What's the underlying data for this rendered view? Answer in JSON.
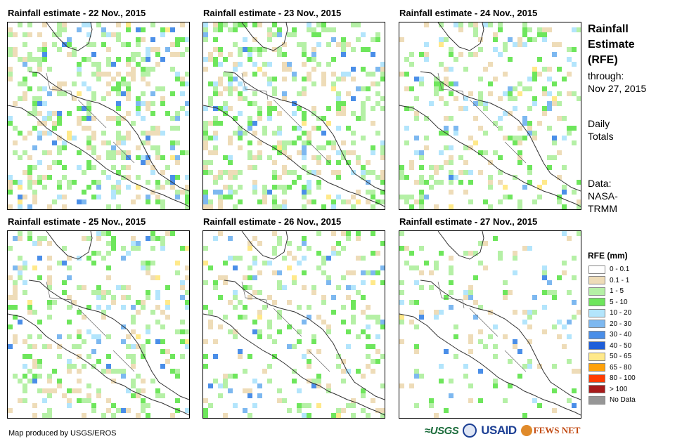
{
  "panels": [
    {
      "title": "Rainfall estimate - 22 Nov., 2015"
    },
    {
      "title": "Rainfall estimate - 23 Nov., 2015"
    },
    {
      "title": "Rainfall estimate - 24 Nov., 2015"
    },
    {
      "title": "Rainfall estimate - 25 Nov., 2015"
    },
    {
      "title": "Rainfall estimate - 26 Nov., 2015"
    },
    {
      "title": "Rainfall estimate - 27 Nov., 2015"
    }
  ],
  "side": {
    "head1": "Rainfall",
    "head2": "Estimate",
    "head3": "(RFE)",
    "through1": "through:",
    "through2": "Nov 27, 2015",
    "daily1": "Daily",
    "daily2": "Totals",
    "data1": "Data:",
    "data2": "NASA-",
    "data3": "TRMM"
  },
  "legend": {
    "title": "RFE (mm)",
    "items": [
      {
        "label": "0 - 0.1",
        "color": "#ffffff"
      },
      {
        "label": "0.1 - 1",
        "color": "#eedcb8"
      },
      {
        "label": "1 - 5",
        "color": "#b5f0a6"
      },
      {
        "label": "5 - 10",
        "color": "#6ee65c"
      },
      {
        "label": "10 - 20",
        "color": "#b3e5fc"
      },
      {
        "label": "20 - 30",
        "color": "#7db8f0"
      },
      {
        "label": "30 - 40",
        "color": "#4a8ee8"
      },
      {
        "label": "40 - 50",
        "color": "#1f5fd9"
      },
      {
        "label": "50 - 65",
        "color": "#ffe98a"
      },
      {
        "label": "65 - 80",
        "color": "#ffa10a"
      },
      {
        "label": "80 - 100",
        "color": "#ff3c00"
      },
      {
        "label": "> 100",
        "color": "#a81a1a"
      },
      {
        "label": "No Data",
        "color": "#969696"
      }
    ]
  },
  "credit": "Map produced by USGS/EROS",
  "logos": {
    "usgs": "≈USGS",
    "usaid": "USAID",
    "fews": "FEWS NET"
  }
}
